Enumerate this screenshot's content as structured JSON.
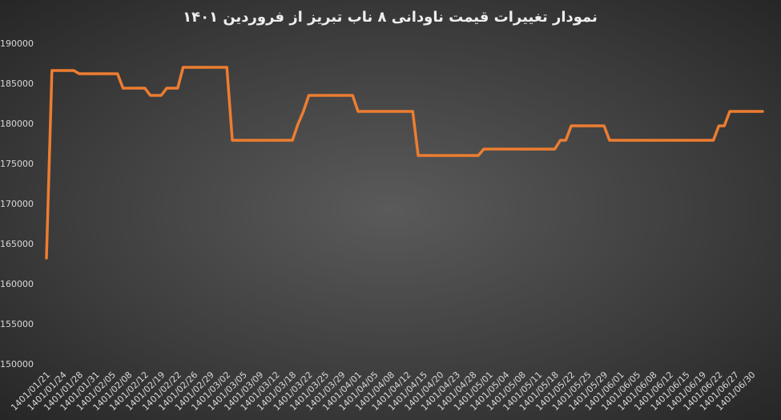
{
  "chart_data": {
    "type": "line",
    "title": "نمودار تغییرات قیمت ناودانی ۸ ناب تبریز از فروردین ۱۴۰۱",
    "categories": [
      "1401/01/21",
      null,
      null,
      "1401/01/24",
      null,
      null,
      "1401/01/28",
      null,
      null,
      "1401/01/31",
      null,
      null,
      "1401/02/05",
      null,
      null,
      "1401/02/08",
      null,
      null,
      "1401/02/12",
      null,
      null,
      "1401/02/19",
      null,
      null,
      "1401/02/22",
      null,
      null,
      "1401/02/26",
      null,
      null,
      "1401/02/29",
      null,
      null,
      "1401/03/02",
      null,
      null,
      "1401/03/05",
      null,
      null,
      "1401/03/09",
      null,
      null,
      "1401/03/12",
      null,
      null,
      "1401/03/18",
      null,
      null,
      "1401/03/22",
      null,
      null,
      "1401/03/25",
      null,
      null,
      "1401/03/29",
      null,
      null,
      "1401/04/01",
      null,
      null,
      "1401/04/05",
      null,
      null,
      "1401/04/08",
      null,
      null,
      "1401/04/12",
      null,
      null,
      "1401/04/15",
      null,
      null,
      "1401/04/20",
      null,
      null,
      "1401/04/23",
      null,
      null,
      "1401/04/28",
      null,
      null,
      "1401/05/01",
      null,
      null,
      "1401/05/04",
      null,
      null,
      "1401/05/08",
      null,
      null,
      "1401/05/11",
      null,
      null,
      "1401/05/18",
      null,
      null,
      "1401/05/22",
      null,
      null,
      "1401/05/25",
      null,
      null,
      "1401/05/29",
      null,
      null,
      "1401/06/01",
      null,
      null,
      "1401/06/05",
      null,
      null,
      "1401/06/08",
      null,
      null,
      "1401/06/12",
      null,
      null,
      "1401/06/15",
      null,
      null,
      "1401/06/19",
      null,
      null,
      "1401/06/22",
      null,
      null,
      "1401/06/27",
      null,
      null,
      "1401/06/30",
      null,
      null
    ],
    "values": [
      163300,
      186700,
      186700,
      186700,
      186700,
      186700,
      186300,
      186300,
      186300,
      186300,
      186300,
      186300,
      186300,
      186300,
      184500,
      184500,
      184500,
      184500,
      184500,
      183600,
      183600,
      183600,
      184500,
      184500,
      184500,
      187100,
      187100,
      187100,
      187100,
      187100,
      187100,
      187100,
      187100,
      187100,
      178000,
      178000,
      178000,
      178000,
      178000,
      178000,
      178000,
      178000,
      178000,
      178000,
      178000,
      178000,
      180000,
      181600,
      183600,
      183600,
      183600,
      183600,
      183600,
      183600,
      183600,
      183600,
      183600,
      181600,
      181600,
      181600,
      181600,
      181600,
      181600,
      181600,
      181600,
      181600,
      181600,
      181600,
      176100,
      176100,
      176100,
      176100,
      176100,
      176100,
      176100,
      176100,
      176100,
      176100,
      176100,
      176100,
      176900,
      176900,
      176900,
      176900,
      176900,
      176900,
      176900,
      176900,
      176900,
      176900,
      176900,
      176900,
      176900,
      176900,
      178000,
      178000,
      179800,
      179800,
      179800,
      179800,
      179800,
      179800,
      179800,
      178000,
      178000,
      178000,
      178000,
      178000,
      178000,
      178000,
      178000,
      178000,
      178000,
      178000,
      178000,
      178000,
      178000,
      178000,
      178000,
      178000,
      178000,
      178000,
      178000,
      179800,
      179800,
      181600,
      181600,
      181600,
      181600,
      181600,
      181600,
      181600
    ],
    "color": "#ed7d31",
    "ylim": [
      150000,
      190000
    ],
    "yticks": [
      150000,
      155000,
      160000,
      165000,
      170000,
      175000,
      180000,
      185000,
      190000
    ],
    "grid": false
  }
}
